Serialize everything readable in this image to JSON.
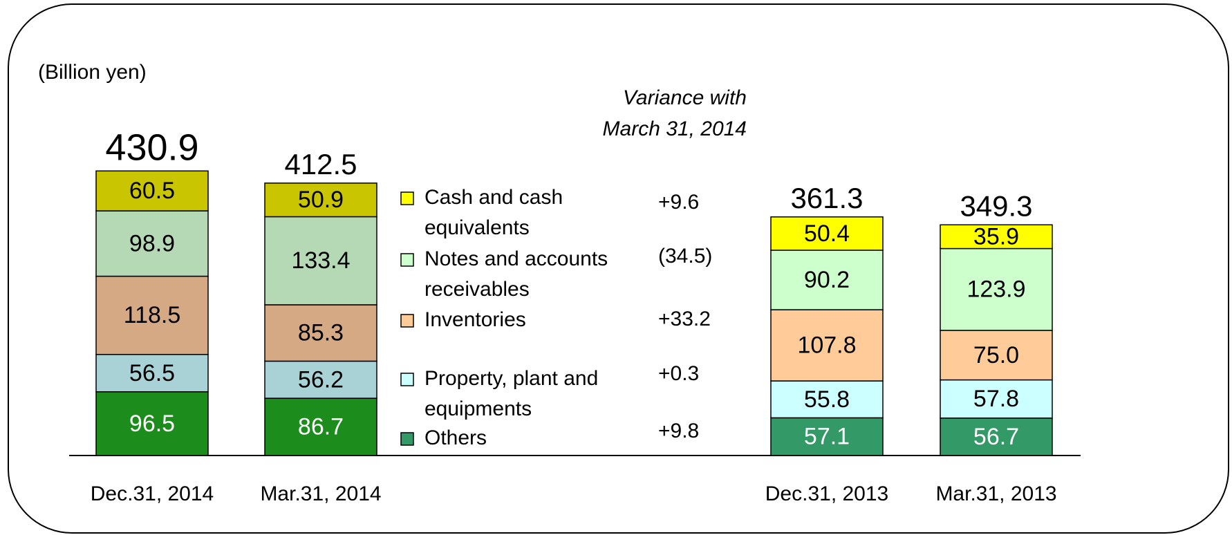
{
  "chart_data": {
    "type": "stacked-bar",
    "unit_label": "(Billion yen)",
    "variance_title": [
      "Variance with",
      "March 31, 2014"
    ],
    "categories": [
      "Dec.31, 2014",
      "Mar.31, 2014",
      "Dec.31, 2013",
      "Mar.31, 2013"
    ],
    "totals": [
      430.9,
      412.5,
      361.3,
      349.3
    ],
    "series": [
      {
        "name": "Others",
        "colors": [
          "#1c8c1c",
          "#1c8c1c",
          "#339966",
          "#339966"
        ],
        "label_color": "#ffffff",
        "values": [
          96.5,
          86.7,
          57.1,
          56.7
        ],
        "variance_label": "+9.8"
      },
      {
        "name": "Property, plant and equipments",
        "colors": [
          "#a9d2d6",
          "#a9d2d6",
          "#ccffff",
          "#ccffff"
        ],
        "label_color": "#000000",
        "values": [
          56.5,
          56.2,
          55.8,
          57.8
        ],
        "variance_label": "+0.3"
      },
      {
        "name": "Inventories",
        "colors": [
          "#d6a985",
          "#d6a985",
          "#ffcc99",
          "#ffcc99"
        ],
        "label_color": "#000000",
        "values": [
          118.5,
          85.3,
          107.8,
          75
        ],
        "value_labels": [
          "118.5",
          "85.3",
          "107.8",
          "75.0"
        ],
        "variance_label": "+33.2"
      },
      {
        "name": "Notes and accounts receivables",
        "colors": [
          "#b5d9b5",
          "#b5d9b5",
          "#ccffcc",
          "#ccffcc"
        ],
        "label_color": "#000000",
        "values": [
          98.9,
          133.4,
          90.2,
          123.9
        ],
        "variance_label": "(34.5)"
      },
      {
        "name": "Cash and cash equivalents",
        "colors": [
          "#c9c500",
          "#c9c500",
          "#ffff00",
          "#ffff00"
        ],
        "label_color": "#000000",
        "values": [
          60.5,
          50.9,
          50.4,
          35.9
        ],
        "variance_label": "+9.6"
      }
    ]
  }
}
